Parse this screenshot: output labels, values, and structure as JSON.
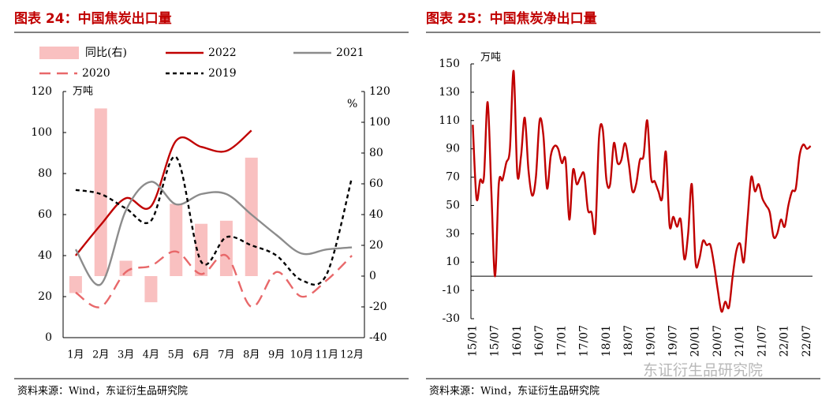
{
  "chart_data": [
    {
      "type": "line",
      "title": "图表 24：中国焦炭出口量",
      "ylabel": "万吨",
      "y2label": "%",
      "categories": [
        "1月",
        "2月",
        "3月",
        "4月",
        "5月",
        "6月",
        "7月",
        "8月",
        "9月",
        "10月",
        "11月",
        "12月"
      ],
      "ylim": [
        0,
        120
      ],
      "yticks": [
        0,
        20,
        40,
        60,
        80,
        100,
        120
      ],
      "y2lim": [
        -40,
        120
      ],
      "y2ticks": [
        -40,
        -20,
        0,
        20,
        40,
        60,
        80,
        100,
        120
      ],
      "grid": false,
      "series": [
        {
          "name": "同比(右)",
          "type": "bar",
          "axis": "y2",
          "color": "#f9c0c0",
          "values": [
            -11,
            109,
            10,
            -17,
            47,
            34,
            36,
            77,
            null,
            null,
            null,
            null
          ]
        },
        {
          "name": "2022",
          "color": "#c00000",
          "dash": false,
          "values": [
            40,
            55,
            68,
            64,
            96,
            93,
            91,
            101,
            null,
            null,
            null,
            null
          ]
        },
        {
          "name": "2021",
          "color": "#8c8c8c",
          "dash": false,
          "values": [
            43,
            26,
            62,
            76,
            65,
            70,
            70,
            60,
            50,
            41,
            43,
            44
          ]
        },
        {
          "name": "2020",
          "color": "#e8686a",
          "dash": true,
          "values": [
            22,
            15,
            32,
            35,
            42,
            31,
            40,
            15,
            32,
            20,
            28,
            40
          ]
        },
        {
          "name": "2019",
          "color": "#000000",
          "dash": true,
          "values": [
            72,
            70,
            63,
            57,
            88,
            37,
            49,
            45,
            40,
            28,
            31,
            78
          ]
        }
      ],
      "source": "资料来源：Wind，东证衍生品研究院"
    },
    {
      "type": "line",
      "title": "图表 25：中国焦炭净出口量",
      "ylabel": "万吨",
      "categories": [
        "15/01",
        null,
        null,
        null,
        null,
        null,
        "15/07",
        null,
        null,
        null,
        null,
        null,
        "16/01",
        null,
        null,
        null,
        null,
        null,
        "16/07",
        null,
        null,
        null,
        null,
        null,
        "17/01",
        null,
        null,
        null,
        null,
        null,
        "17/07",
        null,
        null,
        null,
        null,
        null,
        "18/01",
        null,
        null,
        null,
        null,
        null,
        "18/07",
        null,
        null,
        null,
        null,
        null,
        "19/01",
        null,
        null,
        null,
        null,
        null,
        "19/07",
        null,
        null,
        null,
        null,
        null,
        "20/01",
        null,
        null,
        null,
        null,
        null,
        "20/07",
        null,
        null,
        null,
        null,
        null,
        "21/01",
        null,
        null,
        null,
        null,
        null,
        "21/07",
        null,
        null,
        null,
        null,
        null,
        "22/01",
        null,
        null,
        null,
        null,
        null,
        "22/07",
        null
      ],
      "ylim": [
        -30,
        150
      ],
      "yticks": [
        -30,
        -10,
        10,
        30,
        50,
        70,
        90,
        110,
        130,
        150
      ],
      "grid": false,
      "series": [
        {
          "name": null,
          "color": "#c00000",
          "dash": false,
          "values": [
            107,
            55,
            68,
            70,
            123,
            60,
            0,
            65,
            68,
            80,
            90,
            145,
            72,
            85,
            112,
            75,
            57,
            70,
            110,
            100,
            62,
            85,
            92,
            90,
            80,
            82,
            40,
            75,
            65,
            70,
            72,
            47,
            45,
            32,
            98,
            104,
            68,
            65,
            94,
            80,
            82,
            94,
            80,
            60,
            65,
            82,
            85,
            110,
            70,
            67,
            60,
            55,
            88,
            36,
            42,
            35,
            40,
            12,
            30,
            65,
            10,
            12,
            25,
            22,
            22,
            8,
            -10,
            -25,
            -18,
            -22,
            0,
            18,
            23,
            10,
            40,
            70,
            60,
            65,
            55,
            50,
            45,
            28,
            30,
            40,
            35,
            50,
            60,
            62,
            85,
            93,
            90,
            92
          ]
        }
      ],
      "source": "资料来源：Wind，东证衍生品研究院"
    }
  ],
  "watermark": "东证衍生品研究院"
}
